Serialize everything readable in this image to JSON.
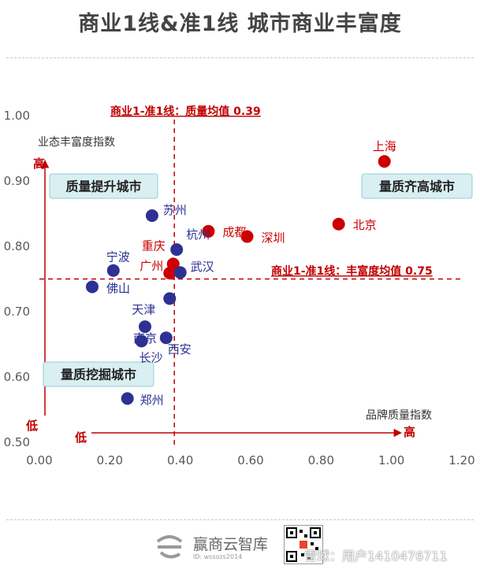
{
  "title": "商业1线&准1线  城市商业丰富度",
  "chart_data": {
    "type": "scatter",
    "xlabel": "品牌质量指数",
    "ylabel": "业态丰富度指数",
    "xlim": [
      0.0,
      1.2
    ],
    "ylim": [
      0.5,
      1.0
    ],
    "x_ticks": [
      "0.00",
      "0.20",
      "0.40",
      "0.60",
      "0.80",
      "1.00",
      "1.20"
    ],
    "y_ticks": [
      "0.50",
      "0.60",
      "0.70",
      "0.80",
      "0.90",
      "1.00"
    ],
    "x_mean": 0.39,
    "y_mean": 0.75,
    "x_mean_label": "商业1-准1线：质量均值 0.39",
    "y_mean_label": "商业1-准1线：丰富度均值 0.75",
    "axis_low_y": "低",
    "axis_high_y": "高",
    "axis_low_x": "低",
    "axis_high_x": "高",
    "quadrants": {
      "top_left": "质量提升城市",
      "top_right": "量质齐高城市",
      "bottom_left": "量质挖掘城市"
    },
    "colors": {
      "tier1": "#cc0000",
      "tier2": "#2e3192",
      "accent": "#c00000",
      "box_bg": "#d9eff2",
      "box_border": "#8fcfd6"
    },
    "series": [
      {
        "name": "商业1线",
        "color": "#cc0000",
        "points": [
          {
            "label": "上海",
            "x": 0.98,
            "y": 0.93
          },
          {
            "label": "北京",
            "x": 0.85,
            "y": 0.834
          },
          {
            "label": "深圳",
            "x": 0.59,
            "y": 0.815
          },
          {
            "label": "成都",
            "x": 0.48,
            "y": 0.823
          },
          {
            "label": "重庆",
            "x": 0.38,
            "y": 0.773
          },
          {
            "label": "广州",
            "x": 0.37,
            "y": 0.759
          }
        ]
      },
      {
        "name": "准1线",
        "color": "#2e3192",
        "points": [
          {
            "label": "苏州",
            "x": 0.32,
            "y": 0.847
          },
          {
            "label": "杭州",
            "x": 0.39,
            "y": 0.795
          },
          {
            "label": "武汉",
            "x": 0.4,
            "y": 0.76
          },
          {
            "label": "宁波",
            "x": 0.21,
            "y": 0.763
          },
          {
            "label": "佛山",
            "x": 0.15,
            "y": 0.738
          },
          {
            "label": "天津",
            "x": 0.37,
            "y": 0.72
          },
          {
            "label": "南京",
            "x": 0.3,
            "y": 0.677
          },
          {
            "label": "西安",
            "x": 0.36,
            "y": 0.66
          },
          {
            "label": "长沙",
            "x": 0.29,
            "y": 0.655
          },
          {
            "label": "郑州",
            "x": 0.25,
            "y": 0.567
          }
        ]
      }
    ]
  },
  "footer": {
    "brand": "赢商云智库",
    "id_text": "ID: wssozs2014",
    "user": "雪球：用户1410476711"
  }
}
